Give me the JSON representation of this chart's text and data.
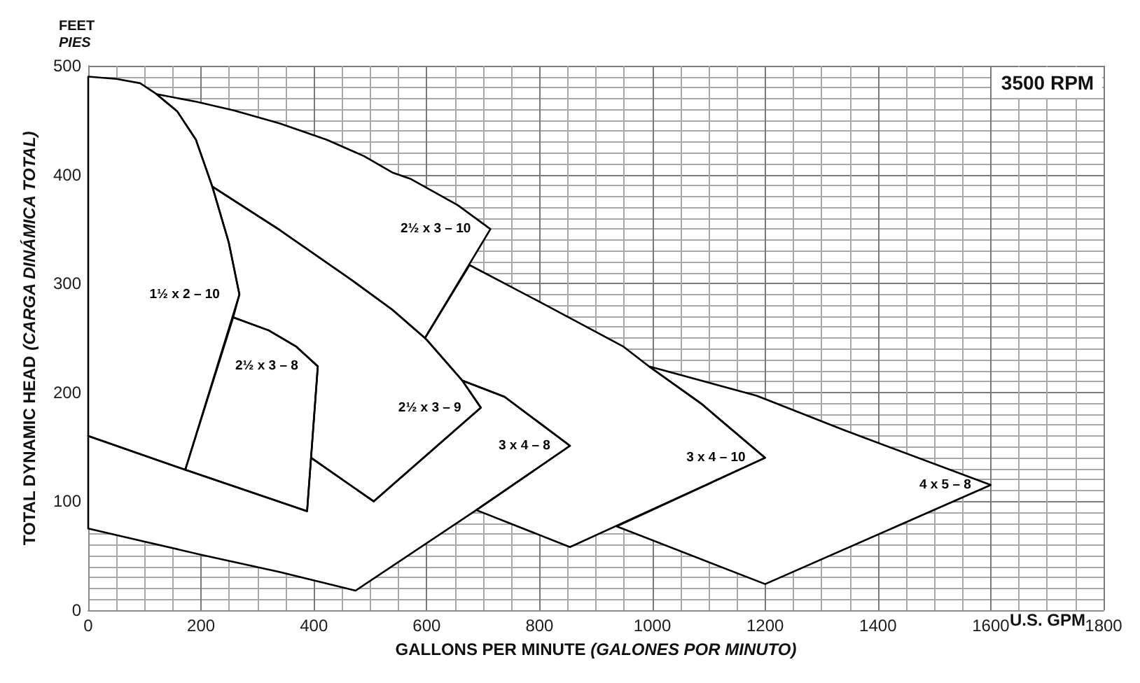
{
  "chart_data": {
    "type": "area",
    "xlabel": "GALLONS PER MINUTE (GALONES POR MINUTO)",
    "ylabel": "TOTAL DYNAMIC HEAD (CARGA DINÁMICA TOTAL)",
    "annotations": [
      "FEET",
      "PIES",
      "U.S. GPM",
      "3500 RPM"
    ],
    "xlim": [
      0,
      1800
    ],
    "xticks": [
      0,
      200,
      400,
      600,
      800,
      1000,
      1200,
      1400,
      1600,
      1800
    ],
    "ylim": [
      0,
      500
    ],
    "yticks": [
      0,
      100,
      200,
      300,
      400,
      500
    ],
    "grid": true,
    "series": [
      {
        "name": "1½ x 2 – 10",
        "color": "#000000",
        "x": [
          0,
          0,
          50,
          92,
          121,
          158,
          191,
          220,
          249,
          268,
          172,
          0
        ],
        "values": [
          160,
          490,
          488,
          484,
          474,
          458,
          432,
          389,
          338,
          290,
          129,
          160
        ]
      },
      {
        "name": "2½ x 3 – 8",
        "color": "#000000",
        "x": [
          172,
          257,
          320,
          369,
          407,
          388,
          172
        ],
        "values": [
          129,
          269,
          257,
          242,
          224,
          91,
          129
        ]
      },
      {
        "name": "2½ x 3 – 9",
        "color": "#000000",
        "x": [
          220,
          340,
          465,
          539,
          601,
          663,
          696,
          506,
          395,
          407,
          369,
          320,
          257,
          268,
          249,
          220
        ],
        "values": [
          389,
          349,
          304,
          276,
          248,
          211,
          186,
          100,
          140,
          224,
          242,
          257,
          269,
          290,
          338,
          389
        ]
      },
      {
        "name": "2½ x 3 – 10",
        "color": "#000000",
        "x": [
          121,
          191,
          258,
          340,
          423,
          489,
          539,
          572,
          655,
          713,
          597,
          539,
          465,
          340,
          220,
          191,
          158,
          121
        ],
        "values": [
          474,
          467,
          459,
          447,
          432,
          417,
          402,
          396,
          372,
          350,
          250,
          276,
          304,
          349,
          389,
          432,
          458,
          474
        ]
      },
      {
        "name": "3 x 4 – 8",
        "color": "#000000",
        "x": [
          0,
          100,
          200,
          340,
          474,
          688,
          854,
          800,
          738,
          663,
          696,
          506,
          395,
          388,
          172,
          0,
          0
        ],
        "values": [
          75,
          63,
          51,
          35,
          18,
          92,
          151,
          172,
          196,
          211,
          186,
          100,
          140,
          91,
          129,
          160,
          75
        ]
      },
      {
        "name": "3 x 4 – 10",
        "color": "#000000",
        "x": [
          676,
          812,
          866,
          949,
          994,
          1086,
          1200,
          854,
          688,
          854,
          800,
          738,
          663,
          597,
          676
        ],
        "values": [
          317,
          280,
          265,
          242,
          224,
          190,
          140,
          58,
          92,
          151,
          172,
          196,
          211,
          250,
          317
        ]
      },
      {
        "name": "4 x 5 – 8",
        "color": "#000000",
        "x": [
          994,
          1185,
          1342,
          1600,
          1200,
          937,
          1200,
          1086,
          994
        ],
        "values": [
          224,
          197,
          165,
          115,
          24,
          77,
          140,
          190,
          224
        ]
      }
    ]
  }
}
